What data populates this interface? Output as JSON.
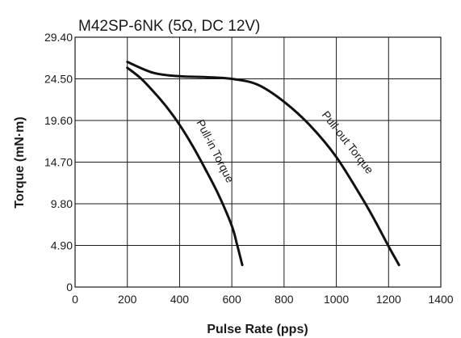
{
  "chart_data": {
    "type": "line",
    "title": "M42SP-6NK (5Ω, DC 12V)",
    "xlabel": "Pulse Rate (pps)",
    "ylabel": "Torque (mN·m)",
    "xlim": [
      0,
      1400
    ],
    "ylim": [
      0,
      29.4
    ],
    "x_ticks": [
      "0",
      "200",
      "400",
      "600",
      "800",
      "1000",
      "1200",
      "1400"
    ],
    "y_ticks": [
      "0",
      "4.90",
      "9.80",
      "14.70",
      "19.60",
      "24.50",
      "29.40"
    ],
    "grid": true,
    "series": [
      {
        "name": "Pull-in Torque",
        "x": [
          200,
          250,
          300,
          350,
          400,
          450,
          500,
          550,
          600,
          620,
          640
        ],
        "y": [
          25.8,
          24.6,
          23.0,
          21.2,
          19.1,
          16.6,
          13.8,
          10.8,
          7.2,
          5.0,
          2.6
        ]
      },
      {
        "name": "Pull-out Torque",
        "x": [
          200,
          300,
          400,
          500,
          600,
          700,
          800,
          900,
          1000,
          1100,
          1150,
          1200,
          1240
        ],
        "y": [
          26.5,
          25.2,
          24.8,
          24.7,
          24.5,
          23.8,
          21.8,
          19.0,
          15.3,
          10.4,
          7.7,
          4.8,
          2.6
        ]
      }
    ]
  }
}
